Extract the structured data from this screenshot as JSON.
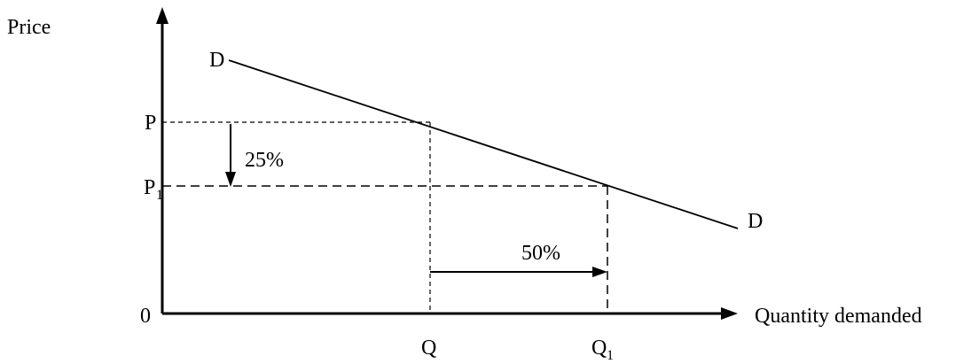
{
  "axes": {
    "y_label": "Price",
    "x_label": "Quantity demanded",
    "origin_label": "0"
  },
  "curve": {
    "start_label": "D",
    "end_label": "D"
  },
  "price_levels": {
    "p_label": "P",
    "p1_label": "P",
    "p1_subscript": "1"
  },
  "quantity_levels": {
    "q_label": "Q",
    "q1_label": "Q",
    "q1_subscript": "1"
  },
  "changes": {
    "price_change": "25%",
    "quantity_change": "50%"
  }
}
